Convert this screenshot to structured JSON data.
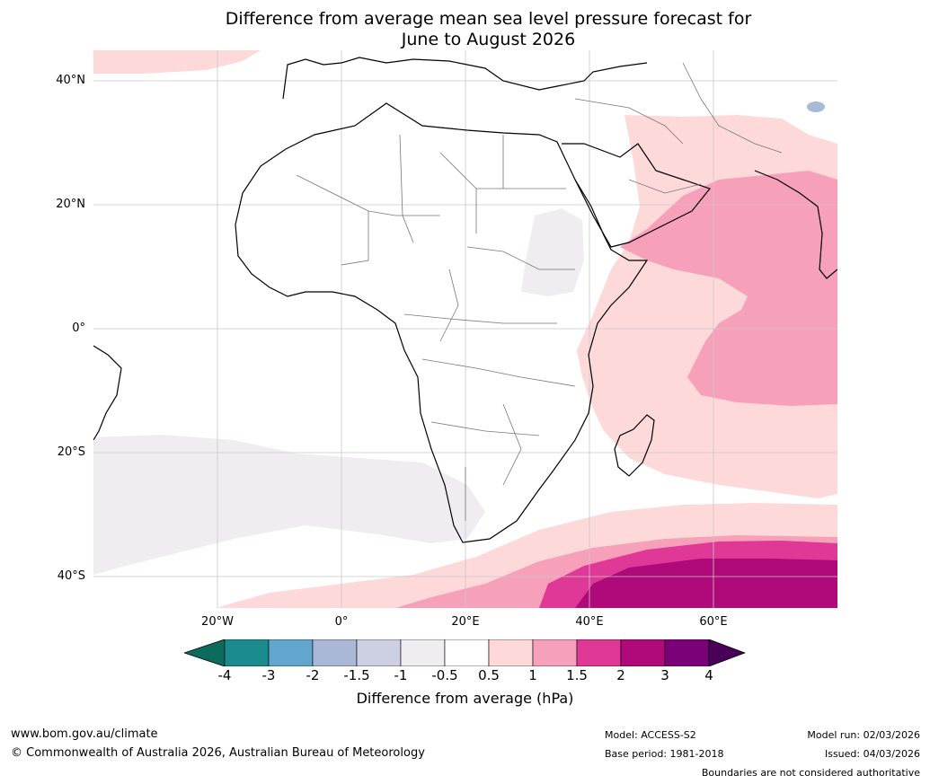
{
  "title_line1": "Difference from average mean sea level pressure forecast for",
  "title_line2": "June to August 2026",
  "latitude_labels": [
    "40°N",
    "20°N",
    "0°",
    "20°S",
    "40°S"
  ],
  "longitude_labels": [
    "20°W",
    "0°",
    "20°E",
    "40°E",
    "60°E"
  ],
  "colorbar": {
    "title": "Difference from average (hPa)",
    "ticks": [
      "-4",
      "-3",
      "-2",
      "-1.5",
      "-1",
      "-0.5",
      "0.5",
      "1",
      "1.5",
      "2",
      "3",
      "4"
    ],
    "colors": [
      "#1b8a8c",
      "#62a6cd",
      "#a8b8d6",
      "#cdcfe2",
      "#f1ecf2",
      "#ffffff",
      "#fdd9da",
      "#f7a0ba",
      "#df3896",
      "#b0097a",
      "#7a0177"
    ],
    "under_color": "#0d6b5d",
    "over_color": "#4a0058"
  },
  "footer": {
    "website": "www.bom.gov.au/climate",
    "copyright": "© Commonwealth of Australia 2026, Australian Bureau of Meteorology",
    "model": "Model: ACCESS-S2",
    "base_period": "Base period: 1981-2018",
    "model_run": "Model run: 02/03/2026",
    "issued": "Issued: 04/03/2026",
    "disclaimer": "Boundaries are not considered authoritative"
  }
}
